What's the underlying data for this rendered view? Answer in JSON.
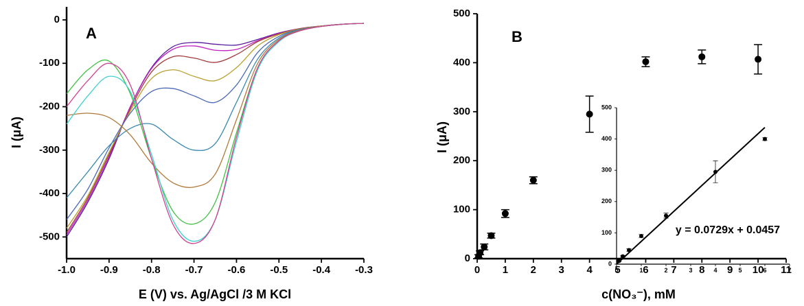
{
  "chart_data": [
    {
      "type": "line",
      "title": "A",
      "xlabel": "E (V) vs. Ag/AgCl /3 M KCl",
      "ylabel": "I (μA)",
      "x": [
        -1.0,
        -0.95,
        -0.9,
        -0.85,
        -0.8,
        -0.75,
        -0.7,
        -0.65,
        -0.6,
        -0.55,
        -0.5,
        -0.45,
        -0.4,
        -0.35,
        -0.3
      ],
      "xlim": [
        -1.0,
        -0.3
      ],
      "xticks": [
        {
          "value": -1,
          "label": "-1.0"
        },
        -0.9,
        -0.8,
        -0.7,
        -0.6,
        -0.5,
        -0.4,
        -0.3
      ],
      "ylim": [
        -550,
        30
      ],
      "yticks": [
        0,
        -100,
        -200,
        -300,
        -400,
        -500
      ],
      "series": [
        {
          "color": "#5a1a9a",
          "values": [
            -500,
            -420,
            -320,
            -200,
            -110,
            -62,
            -52,
            -56,
            -58,
            -45,
            -30,
            -20,
            -14,
            -10,
            -8
          ]
        },
        {
          "color": "#c020c0",
          "values": [
            -495,
            -415,
            -315,
            -200,
            -112,
            -68,
            -60,
            -70,
            -68,
            -48,
            -31,
            -20,
            -14,
            -10,
            -8
          ]
        },
        {
          "color": "#a03a3a",
          "values": [
            -490,
            -410,
            -310,
            -205,
            -120,
            -85,
            -88,
            -98,
            -80,
            -50,
            -32,
            -20,
            -14,
            -10,
            -8
          ]
        },
        {
          "color": "#b8a030",
          "values": [
            -480,
            -405,
            -305,
            -210,
            -135,
            -115,
            -130,
            -140,
            -110,
            -60,
            -34,
            -21,
            -14,
            -10,
            -8
          ]
        },
        {
          "color": "#4a68b8",
          "values": [
            -460,
            -390,
            -295,
            -215,
            -165,
            -158,
            -175,
            -190,
            -150,
            -75,
            -38,
            -22,
            -15,
            -10,
            -8
          ]
        },
        {
          "color": "#3888b0",
          "values": [
            -410,
            -350,
            -290,
            -250,
            -240,
            -275,
            -300,
            -285,
            -190,
            -90,
            -42,
            -23,
            -15,
            -10,
            -8
          ]
        },
        {
          "color": "#b07838",
          "values": [
            -220,
            -215,
            -225,
            -265,
            -330,
            -375,
            -385,
            -355,
            -230,
            -100,
            -45,
            -24,
            -15,
            -10,
            -8
          ]
        },
        {
          "color": "#40c040",
          "values": [
            -170,
            -115,
            -95,
            -170,
            -320,
            -440,
            -470,
            -420,
            -260,
            -110,
            -48,
            -25,
            -15,
            -10,
            -8
          ]
        },
        {
          "color": "#40d0d0",
          "values": [
            -240,
            -175,
            -130,
            -165,
            -310,
            -460,
            -510,
            -460,
            -280,
            -115,
            -50,
            -25,
            -15,
            -10,
            -8
          ]
        },
        {
          "color": "#d04090",
          "values": [
            -200,
            -140,
            -100,
            -150,
            -320,
            -470,
            -515,
            -460,
            -270,
            -110,
            -48,
            -25,
            -15,
            -10,
            -8
          ]
        }
      ]
    },
    {
      "type": "scatter",
      "title": "B",
      "xlabel": "c(NO₃⁻), mM",
      "ylabel": "I (μA)",
      "xlim": [
        0,
        11
      ],
      "xticks": [
        0,
        1,
        2,
        3,
        4,
        5,
        6,
        7,
        8,
        9,
        10,
        11
      ],
      "ylim": [
        0,
        500
      ],
      "yticks": [
        0,
        100,
        200,
        300,
        400,
        500
      ],
      "series": [
        {
          "color": "#000000",
          "x": [
            0.05,
            0.1,
            0.25,
            0.5,
            1,
            2,
            4,
            6,
            8,
            10
          ],
          "values": [
            5,
            12,
            24,
            47,
            92,
            160,
            295,
            402,
            412,
            407
          ],
          "errors": [
            3,
            4,
            6,
            5,
            8,
            7,
            37,
            10,
            14,
            30
          ]
        }
      ]
    },
    {
      "type": "scatter",
      "xlim": [
        0,
        7
      ],
      "xticks": [
        0,
        1,
        2,
        3,
        4,
        5,
        6,
        7
      ],
      "ylim": [
        0,
        500
      ],
      "yticks": [
        0,
        100,
        200,
        300,
        400,
        500
      ],
      "series": [
        {
          "color": "#000000",
          "x": [
            0.1,
            0.25,
            0.5,
            1,
            2,
            4,
            6
          ],
          "values": [
            10,
            25,
            45,
            90,
            155,
            295,
            400
          ],
          "errors": [
            2,
            3,
            4,
            5,
            8,
            35,
            5
          ]
        }
      ],
      "fit": {
        "label": "y = 0.0729x + 0.0457",
        "x": [
          0,
          6
        ],
        "y": [
          0,
          437
        ]
      }
    }
  ]
}
